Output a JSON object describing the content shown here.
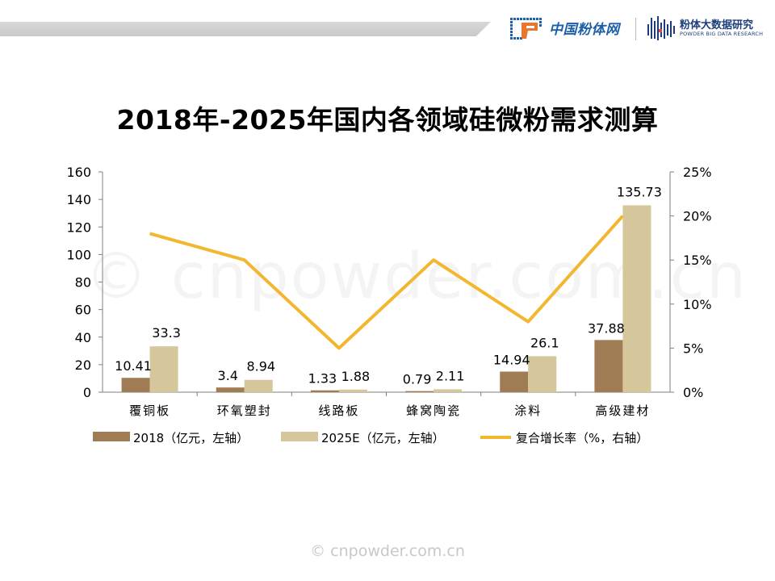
{
  "header": {
    "logo_left_text": "中国粉体网",
    "logo_right_text": "粉体大数据研究",
    "logo_right_subtext": "POWDER BIG DATA RESEARCH"
  },
  "title": "2018年-2025年国内各领域硅微粉需求测算",
  "watermark": "© cnpowder.com.cn",
  "footer_watermark": "© cnpowder.com.cn",
  "colors": {
    "series_2018": "#a07c55",
    "series_2025": "#d6c69c",
    "series_growth": "#f2b72f"
  },
  "chart_data": {
    "type": "bar",
    "categories": [
      "覆铜板",
      "环氧塑封",
      "线路板",
      "蜂窝陶瓷",
      "涂料",
      "高级建材"
    ],
    "series": [
      {
        "name": "2018（亿元，左轴）",
        "type": "bar",
        "axis": "left",
        "values": [
          10.41,
          3.4,
          1.33,
          0.79,
          14.94,
          37.88
        ],
        "labels": [
          "10.41",
          "3.4",
          "1.33",
          "0.79",
          "14.94",
          "37.88"
        ]
      },
      {
        "name": "2025E（亿元，左轴）",
        "type": "bar",
        "axis": "left",
        "values": [
          33.3,
          8.94,
          1.88,
          2.11,
          26.1,
          135.73
        ],
        "labels": [
          "33.3",
          "8.94",
          "1.88",
          "2.11",
          "26.1",
          "135.73"
        ]
      },
      {
        "name": "复合增长率（%，右轴）",
        "type": "line",
        "axis": "right",
        "values": [
          18,
          15,
          5,
          15,
          8,
          20
        ]
      }
    ],
    "y_left": {
      "min": 0,
      "max": 160,
      "ticks": [
        "0",
        "20",
        "40",
        "60",
        "80",
        "100",
        "120",
        "140",
        "160"
      ]
    },
    "y_right": {
      "min": 0,
      "max": 25,
      "ticks": [
        "0%",
        "5%",
        "10%",
        "15%",
        "20%",
        "25%"
      ]
    },
    "grid": false,
    "legend_position": "bottom"
  }
}
